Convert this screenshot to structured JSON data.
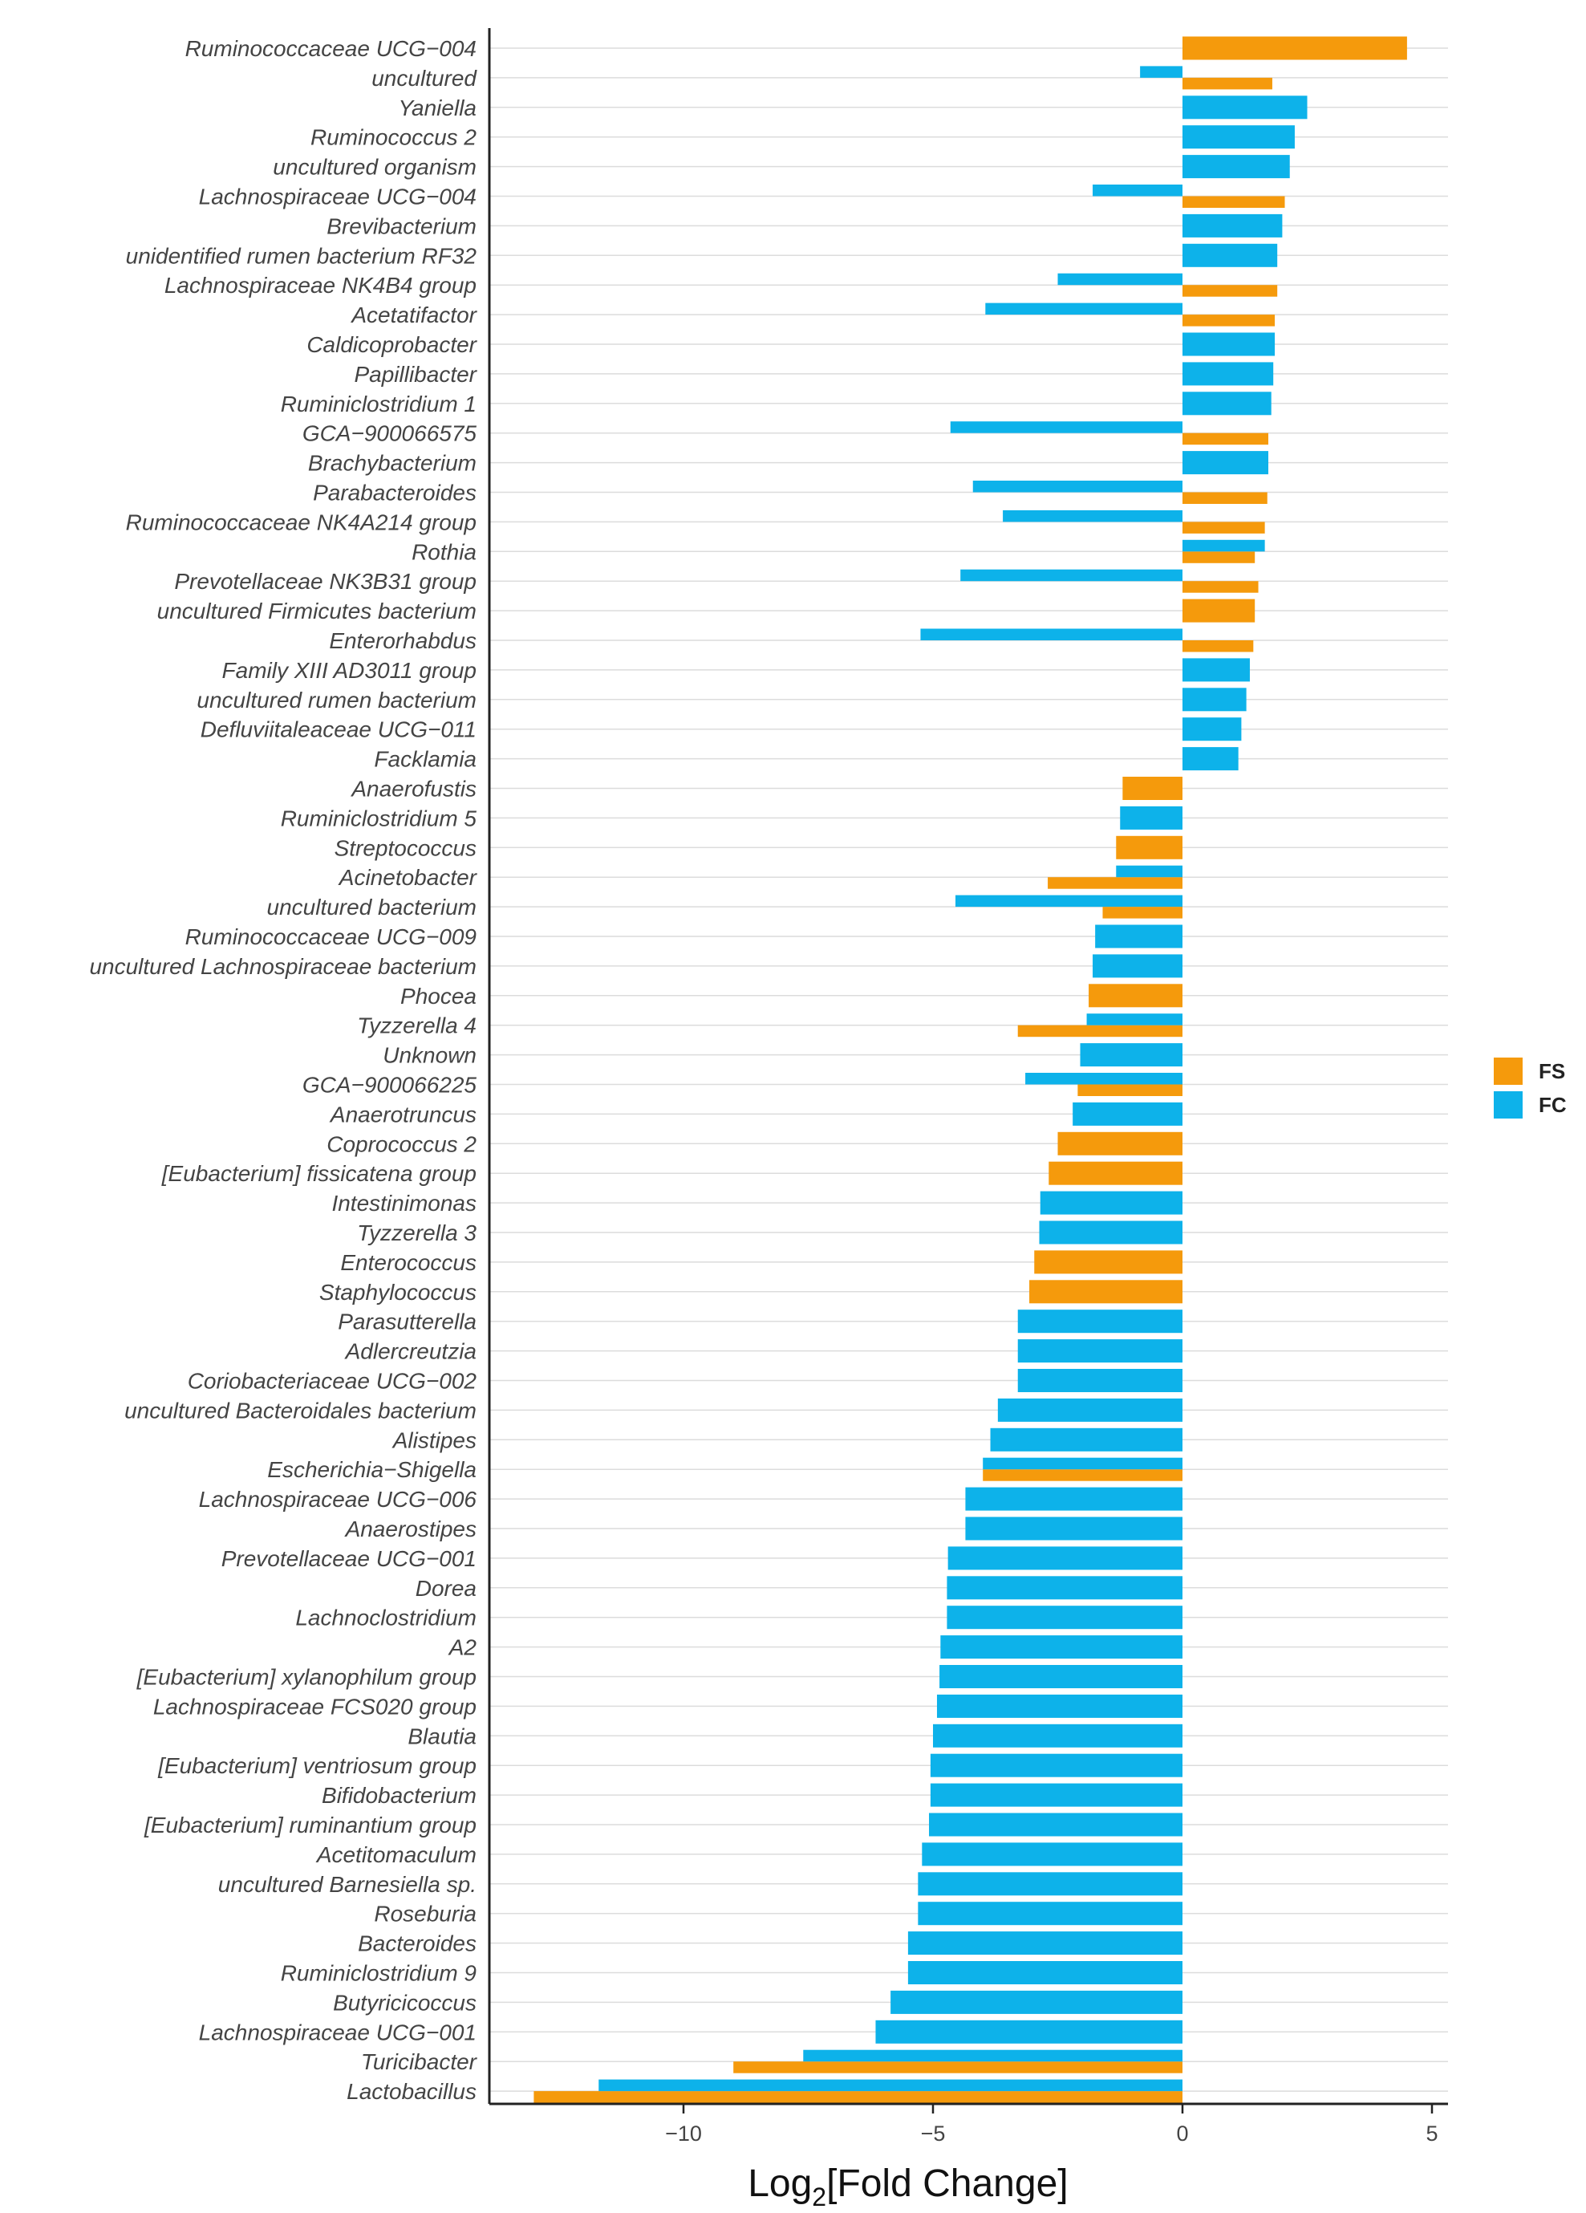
{
  "chart_data": {
    "type": "bar",
    "orientation": "horizontal",
    "title": "",
    "xlabel_main": "Log",
    "xlabel_sub": "2",
    "xlabel_rest": "[Fold Change]",
    "ylabel": "",
    "xlim": [
      -13.5,
      5.3
    ],
    "xticks": [
      -10,
      -5,
      0,
      5
    ],
    "xtick_labels": [
      "−10",
      "−5",
      "0",
      "5"
    ],
    "grid": "horizontal",
    "legend_position": "right",
    "categories": [
      "Ruminococcaceae UCG−004",
      "uncultured",
      "Yaniella",
      "Ruminococcus 2",
      "uncultured organism",
      "Lachnospiraceae UCG−004",
      "Brevibacterium",
      "unidentified rumen bacterium RF32",
      "Lachnospiraceae NK4B4 group",
      "Acetatifactor",
      "Caldicoprobacter",
      "Papillibacter",
      "Ruminiclostridium 1",
      "GCA−900066575",
      "Brachybacterium",
      "Parabacteroides",
      "Ruminococcaceae NK4A214 group",
      "Rothia",
      "Prevotellaceae NK3B31 group",
      "uncultured Firmicutes bacterium",
      "Enterorhabdus",
      "Family XIII AD3011 group",
      "uncultured rumen bacterium",
      "Defluviitaleaceae UCG−011",
      "Facklamia",
      "Anaerofustis",
      "Ruminiclostridium 5",
      "Streptococcus",
      "Acinetobacter",
      "uncultured bacterium",
      "Ruminococcaceae UCG−009",
      "uncultured Lachnospiraceae bacterium",
      "Phocea",
      "Tyzzerella 4",
      "Unknown",
      "GCA−900066225",
      "Anaerotruncus",
      "Coprococcus 2",
      "[Eubacterium] fissicatena group",
      "Intestinimonas",
      "Tyzzerella 3",
      "Enterococcus",
      "Staphylococcus",
      "Parasutterella",
      "Adlercreutzia",
      "Coriobacteriaceae UCG−002",
      "uncultured Bacteroidales bacterium",
      "Alistipes",
      "Escherichia−Shigella",
      "Lachnospiraceae UCG−006",
      "Anaerostipes",
      "Prevotellaceae UCG−001",
      "Dorea",
      "Lachnoclostridium",
      "A2",
      "[Eubacterium] xylanophilum group",
      "Lachnospiraceae FCS020 group",
      "Blautia",
      "[Eubacterium] ventriosum group",
      "Bifidobacterium",
      "[Eubacterium] ruminantium group",
      "Acetitomaculum",
      "uncultured Barnesiella sp.",
      "Roseburia",
      "Bacteroides",
      "Ruminiclostridium 9",
      "Butyricicoccus",
      "Lachnospiraceae UCG−001",
      "Turicibacter",
      "Lactobacillus"
    ],
    "series": [
      {
        "name": "FS",
        "color": "#F59A0C",
        "values": [
          4.5,
          1.8,
          null,
          null,
          null,
          2.05,
          null,
          null,
          1.9,
          1.85,
          null,
          null,
          null,
          1.72,
          null,
          1.7,
          1.65,
          1.45,
          1.52,
          1.45,
          1.42,
          null,
          null,
          null,
          null,
          -1.2,
          null,
          -1.33,
          -2.7,
          -1.6,
          null,
          null,
          -1.88,
          -3.3,
          null,
          -2.1,
          null,
          -2.5,
          -2.68,
          null,
          null,
          -2.97,
          -3.07,
          null,
          null,
          null,
          null,
          null,
          -4.0,
          null,
          null,
          null,
          null,
          null,
          null,
          null,
          null,
          null,
          null,
          null,
          null,
          null,
          null,
          null,
          null,
          null,
          null,
          null,
          -9.0,
          -13.0
        ]
      },
      {
        "name": "FC",
        "color": "#0DB2EA",
        "values": [
          null,
          -0.85,
          2.5,
          2.25,
          2.15,
          -1.8,
          2.0,
          1.9,
          -2.5,
          -3.95,
          1.85,
          1.82,
          1.78,
          -4.65,
          1.72,
          -4.2,
          -3.6,
          1.65,
          -4.45,
          null,
          -5.25,
          1.35,
          1.28,
          1.18,
          1.12,
          null,
          -1.25,
          null,
          -1.33,
          -4.55,
          -1.75,
          -1.8,
          null,
          -1.92,
          -2.05,
          -3.15,
          -2.2,
          null,
          null,
          -2.85,
          -2.87,
          null,
          null,
          -3.3,
          -3.3,
          -3.3,
          -3.7,
          -3.85,
          -4.0,
          -4.35,
          -4.35,
          -4.7,
          -4.72,
          -4.72,
          -4.85,
          -4.87,
          -4.92,
          -5.0,
          -5.05,
          -5.05,
          -5.08,
          -5.22,
          -5.3,
          -5.3,
          -5.5,
          -5.5,
          -5.85,
          -6.15,
          -7.6,
          -11.7
        ]
      }
    ]
  }
}
